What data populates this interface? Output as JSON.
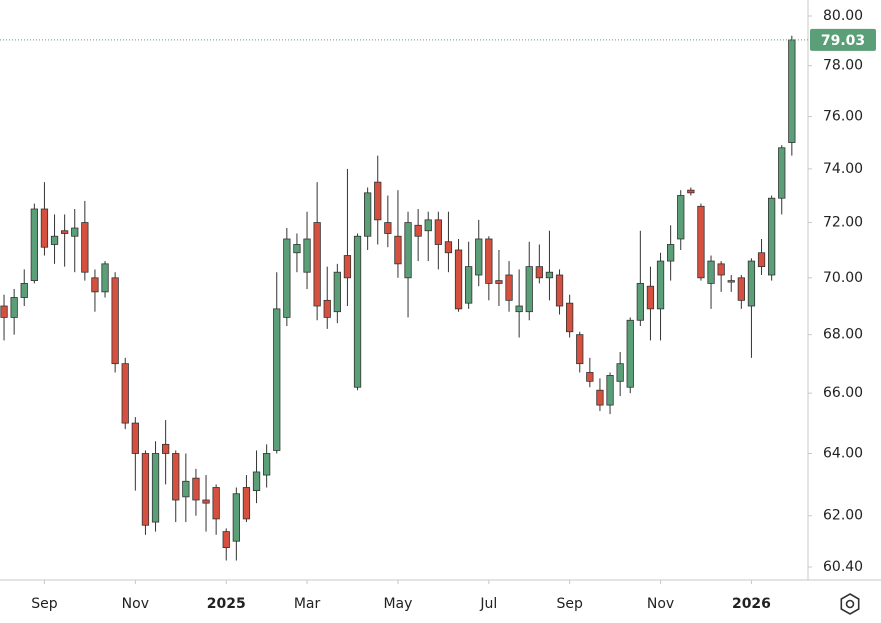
{
  "chart_data": {
    "type": "candlestick",
    "log_scale": true,
    "up_color": "#5b9f78",
    "down_color": "#d6503f",
    "ylim": [
      60.4,
      80
    ],
    "yticks": [
      {
        "value": 60.4,
        "label": "60.40"
      },
      {
        "value": 62,
        "label": "62.00"
      },
      {
        "value": 64,
        "label": "64.00"
      },
      {
        "value": 66,
        "label": "66.00"
      },
      {
        "value": 68,
        "label": "68.00"
      },
      {
        "value": 70,
        "label": "70.00"
      },
      {
        "value": 72,
        "label": "72.00"
      },
      {
        "value": 74,
        "label": "74.00"
      },
      {
        "value": 76,
        "label": "76.00"
      },
      {
        "value": 78,
        "label": "78.00"
      },
      {
        "value": 80,
        "label": "80.00"
      }
    ],
    "xlim": [
      -0.4,
      79.6
    ],
    "xticks": [
      {
        "value": 4,
        "label": "Sep"
      },
      {
        "value": 13,
        "label": "Nov"
      },
      {
        "value": 22,
        "label": "2025"
      },
      {
        "value": 30,
        "label": "Mar"
      },
      {
        "value": 39,
        "label": "May"
      },
      {
        "value": 48,
        "label": "Jul"
      },
      {
        "value": 56,
        "label": "Sep"
      },
      {
        "value": 65,
        "label": "Nov"
      },
      {
        "value": 74,
        "label": "2026"
      }
    ],
    "open": [
      69.0,
      68.6,
      69.3,
      69.9,
      72.5,
      71.2,
      71.7,
      71.5,
      72.0,
      70.0,
      69.5,
      70.0,
      67.0,
      65.0,
      64.0,
      61.8,
      64.3,
      64.0,
      62.6,
      63.2,
      62.5,
      62.9,
      61.5,
      61.2,
      62.9,
      62.8,
      63.3,
      64.1,
      68.6,
      70.9,
      70.2,
      72.0,
      69.2,
      68.8,
      70.8,
      66.2,
      71.5,
      73.5,
      72.0,
      71.5,
      70.0,
      71.9,
      71.7,
      72.1,
      71.3,
      71.0,
      69.1,
      70.1,
      71.4,
      69.9,
      70.1,
      68.8,
      68.8,
      70.4,
      70.0,
      70.1,
      69.1,
      68.0,
      66.7,
      66.1,
      65.6,
      66.4,
      66.2,
      68.5,
      69.7,
      68.9,
      70.6,
      71.4,
      73.2,
      72.6,
      69.8,
      70.5,
      69.9,
      70.0,
      69.0,
      70.9,
      70.1,
      72.9,
      75.0
    ],
    "high": [
      69.4,
      69.6,
      70.3,
      72.7,
      73.5,
      72.3,
      72.3,
      72.5,
      72.8,
      70.3,
      70.6,
      70.2,
      67.2,
      65.2,
      64.1,
      64.4,
      65.1,
      64.1,
      64.0,
      63.5,
      63.3,
      63.0,
      61.6,
      62.9,
      63.3,
      64.1,
      64.3,
      70.2,
      71.8,
      71.6,
      72.4,
      73.5,
      70.4,
      70.5,
      74.0,
      71.6,
      73.3,
      74.5,
      73.0,
      73.2,
      72.4,
      72.5,
      72.4,
      72.4,
      72.4,
      71.4,
      71.3,
      72.1,
      71.5,
      71.0,
      70.6,
      70.3,
      71.3,
      71.2,
      71.7,
      70.3,
      69.4,
      68.1,
      67.2,
      66.5,
      66.7,
      67.4,
      68.6,
      71.7,
      70.4,
      70.9,
      71.9,
      73.2,
      73.3,
      72.7,
      70.8,
      70.6,
      70.1,
      70.1,
      70.7,
      71.4,
      73.0,
      74.9,
      79.2
    ],
    "low": [
      67.8,
      68.0,
      69.0,
      69.8,
      70.8,
      70.5,
      70.4,
      70.2,
      69.9,
      68.8,
      69.3,
      66.7,
      64.8,
      62.8,
      61.4,
      61.5,
      63.0,
      61.8,
      61.8,
      62.0,
      61.5,
      61.4,
      60.6,
      60.6,
      61.8,
      62.4,
      62.9,
      64.0,
      68.3,
      70.2,
      69.6,
      68.5,
      68.2,
      68.4,
      69.0,
      66.1,
      71.0,
      71.2,
      71.1,
      70.0,
      68.6,
      70.6,
      70.6,
      70.3,
      70.2,
      68.8,
      68.9,
      69.7,
      69.2,
      69.0,
      68.8,
      67.9,
      68.5,
      69.8,
      69.2,
      68.7,
      67.9,
      66.7,
      66.2,
      65.4,
      65.3,
      65.9,
      66.0,
      68.3,
      67.8,
      67.8,
      69.9,
      71.0,
      73.0,
      69.9,
      68.9,
      69.5,
      69.5,
      68.9,
      67.2,
      70.1,
      69.9,
      72.3,
      74.5
    ],
    "close": [
      68.6,
      69.3,
      69.8,
      72.5,
      71.1,
      71.5,
      71.6,
      71.8,
      70.2,
      69.5,
      70.5,
      67.0,
      65.0,
      64.0,
      61.7,
      64.0,
      64.0,
      62.5,
      63.1,
      62.5,
      62.4,
      61.9,
      61.0,
      62.7,
      61.9,
      63.4,
      64.0,
      68.9,
      71.4,
      71.2,
      71.4,
      69.0,
      68.6,
      70.2,
      70.0,
      71.5,
      73.1,
      72.1,
      71.6,
      70.5,
      72.0,
      71.5,
      72.1,
      71.2,
      70.9,
      68.9,
      70.4,
      71.4,
      69.8,
      69.8,
      69.2,
      69.0,
      70.4,
      70.0,
      70.2,
      69.0,
      68.1,
      67.0,
      66.4,
      65.6,
      66.6,
      67.0,
      68.5,
      69.8,
      68.9,
      70.6,
      71.2,
      73.0,
      73.1,
      70.0,
      70.6,
      70.1,
      69.9,
      69.2,
      70.6,
      70.4,
      72.9,
      74.8,
      79.03
    ]
  }
}
